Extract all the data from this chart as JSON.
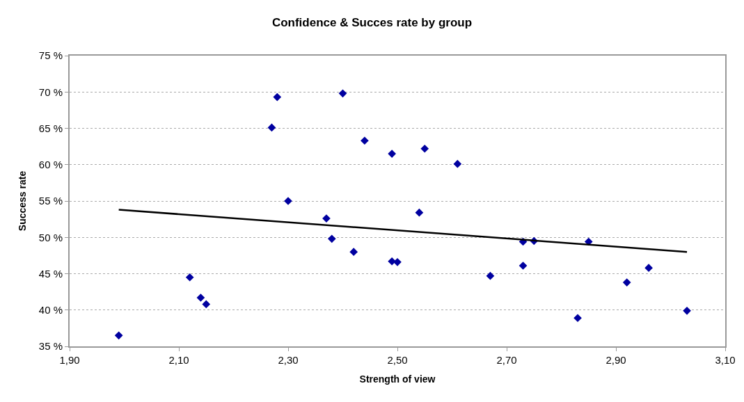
{
  "chart_data": {
    "type": "scatter",
    "title": "Confidence & Succes rate by group",
    "xlabel": "Strength of view",
    "ylabel": "Success rate",
    "series": [
      {
        "color": "#0000a0",
        "marker": "diamond",
        "x": [
          1.99,
          2.12,
          2.14,
          2.15,
          2.27,
          2.28,
          2.3,
          2.37,
          2.38,
          2.4,
          2.42,
          2.44,
          2.49,
          2.49,
          2.5,
          2.54,
          2.55,
          2.61,
          2.67,
          2.73,
          2.73,
          2.75,
          2.83,
          2.85,
          2.92,
          2.96,
          3.03
        ],
        "values": [
          36.5,
          44.5,
          41.7,
          40.8,
          65.1,
          69.3,
          55.0,
          52.6,
          49.8,
          69.8,
          48.0,
          63.3,
          46.7,
          61.5,
          46.6,
          53.4,
          62.2,
          60.1,
          44.7,
          49.4,
          46.1,
          49.5,
          38.9,
          49.4,
          43.8,
          45.8,
          39.9
        ]
      },
      {
        "type": "line",
        "color": "#000000",
        "marker": "none",
        "line_style": "solid",
        "x": [
          1.99,
          3.03
        ],
        "values": [
          53.8,
          48.0
        ]
      }
    ],
    "xlim": [
      1.9,
      3.1
    ],
    "xticks": [
      {
        "value": 1.9,
        "label": "1,90"
      },
      {
        "value": 2.1,
        "label": "2,10"
      },
      {
        "value": 2.3,
        "label": "2,30"
      },
      {
        "value": 2.5,
        "label": "2,50"
      },
      {
        "value": 2.7,
        "label": "2,70"
      },
      {
        "value": 2.9,
        "label": "2,90"
      },
      {
        "value": 3.1,
        "label": "3,10"
      }
    ],
    "ylim": [
      35,
      75
    ],
    "yticks": [
      {
        "value": 35,
        "label": "35 %"
      },
      {
        "value": 40,
        "label": "40 %"
      },
      {
        "value": 45,
        "label": "45 %"
      },
      {
        "value": 50,
        "label": "50 %"
      },
      {
        "value": 55,
        "label": "55 %"
      },
      {
        "value": 60,
        "label": "60 %"
      },
      {
        "value": 65,
        "label": "65 %"
      },
      {
        "value": 70,
        "label": "70 %"
      },
      {
        "value": 75,
        "label": "75 %"
      }
    ],
    "grid": "y"
  }
}
